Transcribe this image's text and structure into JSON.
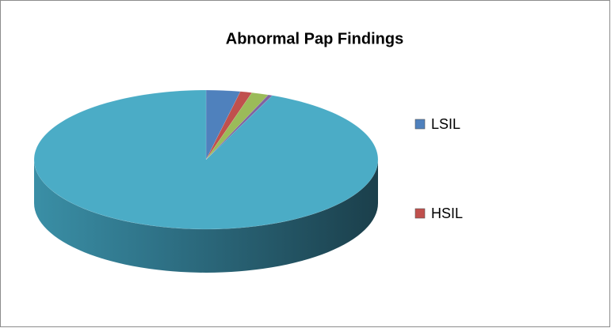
{
  "chart_data": {
    "type": "pie",
    "title": "Abnormal Pap Findings",
    "categories": [
      "LSIL",
      "HSIL",
      null,
      null,
      null
    ],
    "values": [
      3.2,
      1.1,
      1.6,
      0.4,
      93.7
    ],
    "colors": [
      "#4f81bd",
      "#c0504d",
      "#9bbb59",
      "#8064a2",
      "#4bacc6"
    ],
    "legend": "right"
  }
}
